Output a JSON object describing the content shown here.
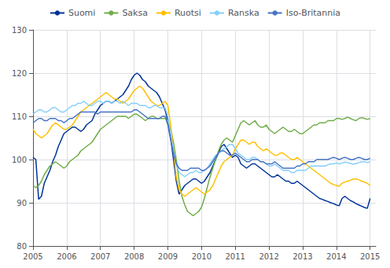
{
  "chart_data": {
    "type": "line",
    "x": [
      2005,
      2005.0833333333333,
      2005.1666666666667,
      2005.25,
      2005.3333333333333,
      2005.4166666666667,
      2005.5,
      2005.5833333333333,
      2005.6666666666667,
      2005.75,
      2005.8333333333333,
      2005.9166666666667,
      2006,
      2006.0833333333333,
      2006.1666666666667,
      2006.25,
      2006.3333333333333,
      2006.4166666666667,
      2006.5,
      2006.5833333333333,
      2006.6666666666667,
      2006.75,
      2006.8333333333333,
      2006.9166666666667,
      2007,
      2007.0833333333333,
      2007.1666666666667,
      2007.25,
      2007.3333333333333,
      2007.4166666666667,
      2007.5,
      2007.5833333333333,
      2007.6666666666667,
      2007.75,
      2007.8333333333333,
      2007.9166666666667,
      2008,
      2008.0833333333333,
      2008.1666666666667,
      2008.25,
      2008.3333333333333,
      2008.4166666666667,
      2008.5,
      2008.5833333333333,
      2008.6666666666667,
      2008.75,
      2008.8333333333333,
      2008.9166666666667,
      2009,
      2009.0833333333333,
      2009.1666666666667,
      2009.25,
      2009.3333333333333,
      2009.4166666666667,
      2009.5,
      2009.5833333333333,
      2009.6666666666667,
      2009.75,
      2009.8333333333333,
      2009.9166666666667,
      2010,
      2010.0833333333333,
      2010.1666666666667,
      2010.25,
      2010.3333333333333,
      2010.4166666666667,
      2010.5,
      2010.5833333333333,
      2010.6666666666667,
      2010.75,
      2010.8333333333333,
      2010.9166666666667,
      2011,
      2011.0833333333333,
      2011.1666666666667,
      2011.25,
      2011.3333333333333,
      2011.4166666666667,
      2011.5,
      2011.5833333333333,
      2011.6666666666667,
      2011.75,
      2011.8333333333333,
      2011.9166666666667,
      2012,
      2012.0833333333333,
      2012.1666666666667,
      2012.25,
      2012.3333333333333,
      2012.4166666666667,
      2012.5,
      2012.5833333333333,
      2012.6666666666667,
      2012.75,
      2012.8333333333333,
      2012.9166666666667,
      2013,
      2013.0833333333333,
      2013.1666666666667,
      2013.25,
      2013.3333333333333,
      2013.4166666666667,
      2013.5,
      2013.5833333333333,
      2013.6666666666667,
      2013.75,
      2013.8333333333333,
      2013.9166666666667,
      2014,
      2014.0833333333333,
      2014.1666666666667,
      2014.25,
      2014.3333333333333,
      2014.4166666666667,
      2014.5,
      2014.5833333333333,
      2014.6666666666667,
      2014.75,
      2014.8333333333333,
      2014.9166666666667,
      2015
    ],
    "series": [
      {
        "name": "Suomi",
        "color": "#003399",
        "values": [
          100.5,
          100.0,
          90.8,
          91.5,
          94.5,
          96.0,
          97.5,
          99.5,
          101.0,
          103.0,
          104.5,
          106.0,
          106.5,
          107.0,
          107.5,
          107.5,
          107.0,
          106.5,
          107.0,
          108.0,
          108.5,
          109.0,
          110.5,
          111.5,
          112.5,
          113.0,
          113.5,
          113.5,
          113.0,
          113.5,
          114.0,
          114.5,
          115.0,
          116.0,
          117.0,
          118.5,
          119.5,
          120.0,
          119.5,
          118.5,
          118.0,
          117.0,
          116.5,
          116.0,
          115.5,
          114.5,
          113.0,
          111.5,
          109.0,
          105.0,
          100.0,
          95.0,
          92.0,
          93.0,
          94.0,
          94.5,
          95.0,
          95.5,
          95.5,
          95.0,
          94.5,
          95.0,
          96.0,
          97.0,
          98.5,
          100.0,
          101.5,
          103.0,
          103.5,
          102.5,
          101.5,
          100.5,
          101.0,
          100.5,
          99.0,
          98.5,
          98.0,
          98.5,
          99.0,
          99.0,
          98.5,
          98.0,
          97.5,
          97.0,
          96.5,
          96.0,
          96.0,
          96.5,
          96.0,
          95.5,
          95.0,
          95.0,
          94.5,
          94.5,
          95.0,
          94.5,
          94.0,
          93.5,
          93.0,
          92.5,
          92.0,
          91.5,
          91.0,
          90.8,
          90.5,
          90.3,
          90.0,
          89.8,
          89.5,
          89.3,
          91.0,
          91.5,
          91.0,
          90.5,
          90.2,
          89.8,
          89.5,
          89.2,
          88.9,
          88.7,
          91.0
        ]
      },
      {
        "name": "Saksa",
        "color": "#70AD47",
        "values": [
          94.0,
          93.5,
          94.0,
          95.0,
          96.5,
          97.5,
          98.5,
          99.0,
          99.5,
          99.0,
          98.5,
          98.0,
          98.5,
          99.5,
          100.0,
          100.5,
          101.0,
          102.0,
          102.5,
          103.0,
          103.5,
          104.0,
          105.0,
          106.0,
          107.0,
          107.5,
          108.0,
          108.5,
          109.0,
          109.5,
          110.0,
          110.0,
          110.0,
          110.0,
          109.5,
          110.0,
          110.5,
          110.5,
          110.0,
          109.5,
          109.0,
          109.5,
          110.0,
          110.0,
          109.5,
          109.5,
          109.5,
          109.5,
          109.0,
          107.0,
          104.0,
          100.0,
          95.0,
          91.5,
          89.5,
          88.0,
          87.5,
          87.0,
          87.5,
          88.0,
          89.0,
          91.0,
          93.5,
          96.0,
          98.0,
          100.0,
          102.0,
          103.5,
          104.5,
          105.0,
          104.5,
          104.0,
          105.5,
          107.0,
          108.5,
          109.0,
          108.5,
          108.0,
          108.5,
          109.0,
          108.0,
          107.5,
          107.5,
          108.0,
          107.0,
          106.5,
          106.0,
          106.5,
          107.0,
          107.5,
          107.0,
          106.5,
          106.5,
          107.0,
          106.5,
          106.0,
          106.0,
          106.5,
          107.0,
          107.5,
          108.0,
          108.0,
          108.5,
          108.5,
          108.5,
          109.0,
          109.0,
          109.0,
          109.5,
          109.5,
          109.3,
          109.5,
          109.8,
          109.5,
          109.2,
          109.0,
          109.5,
          109.7,
          109.5,
          109.3,
          109.5
        ]
      },
      {
        "name": "Ruotsi",
        "color": "#FFC000",
        "values": [
          107.0,
          106.0,
          105.5,
          105.0,
          105.5,
          106.0,
          107.0,
          108.0,
          108.5,
          108.0,
          107.5,
          107.0,
          107.0,
          107.5,
          108.0,
          109.0,
          110.0,
          111.0,
          111.5,
          112.0,
          112.5,
          113.0,
          113.5,
          114.0,
          114.5,
          115.0,
          115.5,
          115.0,
          114.5,
          114.0,
          114.0,
          113.5,
          113.0,
          113.5,
          114.0,
          115.0,
          116.0,
          116.5,
          117.0,
          116.5,
          115.5,
          114.5,
          113.5,
          113.0,
          112.5,
          112.5,
          113.0,
          113.5,
          112.5,
          108.0,
          102.0,
          96.0,
          93.0,
          92.0,
          91.5,
          92.0,
          92.5,
          93.0,
          93.5,
          93.0,
          92.5,
          92.0,
          92.5,
          93.0,
          94.0,
          95.5,
          97.0,
          98.5,
          99.5,
          100.0,
          100.5,
          101.0,
          102.5,
          103.5,
          104.5,
          104.5,
          104.0,
          103.5,
          104.0,
          104.0,
          103.0,
          102.5,
          102.0,
          102.5,
          102.0,
          101.5,
          101.0,
          101.0,
          101.5,
          101.5,
          101.0,
          100.5,
          100.0,
          100.0,
          100.5,
          100.0,
          99.5,
          99.0,
          98.5,
          98.0,
          97.5,
          97.0,
          96.5,
          96.0,
          95.5,
          95.0,
          94.5,
          94.2,
          94.0,
          93.8,
          94.5,
          94.8,
          95.0,
          95.2,
          95.5,
          95.5,
          95.3,
          95.0,
          94.8,
          94.5,
          94.0
        ]
      },
      {
        "name": "Ranska",
        "color": "#87CEFA",
        "values": [
          110.5,
          111.0,
          111.5,
          111.5,
          111.0,
          111.0,
          111.5,
          112.0,
          112.0,
          111.5,
          111.0,
          111.0,
          111.5,
          112.0,
          112.5,
          112.5,
          113.0,
          113.0,
          113.5,
          113.0,
          112.5,
          112.5,
          113.0,
          113.5,
          113.5,
          113.0,
          113.5,
          113.5,
          113.0,
          113.5,
          113.5,
          113.0,
          113.5,
          113.0,
          112.5,
          113.0,
          113.0,
          113.0,
          112.5,
          112.5,
          112.5,
          112.0,
          112.0,
          112.5,
          112.5,
          112.0,
          112.0,
          112.0,
          110.0,
          106.0,
          102.0,
          99.0,
          97.0,
          96.5,
          96.0,
          96.5,
          97.0,
          97.0,
          97.5,
          97.0,
          97.0,
          97.5,
          98.0,
          99.0,
          100.0,
          101.0,
          101.5,
          102.0,
          102.5,
          103.0,
          103.5,
          103.5,
          102.5,
          101.5,
          101.0,
          100.5,
          100.0,
          100.0,
          100.5,
          100.5,
          100.0,
          99.5,
          99.5,
          99.0,
          98.5,
          98.5,
          99.0,
          98.5,
          98.0,
          97.5,
          97.5,
          97.5,
          97.0,
          97.0,
          97.5,
          97.5,
          97.5,
          97.5,
          98.0,
          98.5,
          98.5,
          98.5,
          98.5,
          98.5,
          98.5,
          98.8,
          99.0,
          99.0,
          99.2,
          99.0,
          99.2,
          99.4,
          99.3,
          99.1,
          98.9,
          99.1,
          99.3,
          99.5,
          99.5,
          99.3,
          99.5
        ]
      },
      {
        "name": "Iso-Britannia",
        "color": "#4472C4",
        "values": [
          108.5,
          109.0,
          109.5,
          109.5,
          109.0,
          109.0,
          109.5,
          109.5,
          109.5,
          109.0,
          109.0,
          108.5,
          109.0,
          109.5,
          109.5,
          110.0,
          110.5,
          111.0,
          111.0,
          111.0,
          111.0,
          111.0,
          111.0,
          110.5,
          111.0,
          111.0,
          111.0,
          111.0,
          111.0,
          111.0,
          111.0,
          111.0,
          111.0,
          111.0,
          111.0,
          111.0,
          111.5,
          111.5,
          111.0,
          110.5,
          110.0,
          109.5,
          109.5,
          109.5,
          109.5,
          109.5,
          110.0,
          110.0,
          108.0,
          104.5,
          101.5,
          99.0,
          98.0,
          97.5,
          97.5,
          97.5,
          98.0,
          98.0,
          98.0,
          98.0,
          97.5,
          97.5,
          98.0,
          98.5,
          99.5,
          100.5,
          101.5,
          102.0,
          102.0,
          101.5,
          101.0,
          101.0,
          101.5,
          101.0,
          100.5,
          100.0,
          99.5,
          99.5,
          100.0,
          100.0,
          100.0,
          99.5,
          99.5,
          99.0,
          99.0,
          99.0,
          99.5,
          99.0,
          98.5,
          98.0,
          98.0,
          98.0,
          98.0,
          98.0,
          98.5,
          98.5,
          99.0,
          99.0,
          99.5,
          99.5,
          99.5,
          100.0,
          100.0,
          100.0,
          100.0,
          100.0,
          100.3,
          100.5,
          100.3,
          100.0,
          100.3,
          100.5,
          100.3,
          100.0,
          100.0,
          100.3,
          100.5,
          100.3,
          100.0,
          100.0,
          100.3
        ]
      }
    ],
    "xlim": [
      2005.0,
      2015.17
    ],
    "xticks": [
      2005,
      2006,
      2007,
      2008,
      2009,
      2010,
      2011,
      2012,
      2013,
      2014,
      2015
    ],
    "ylim": [
      80,
      130
    ],
    "yticks": [
      80,
      90,
      100,
      110,
      120,
      130
    ],
    "grid": true,
    "legend": "top"
  }
}
